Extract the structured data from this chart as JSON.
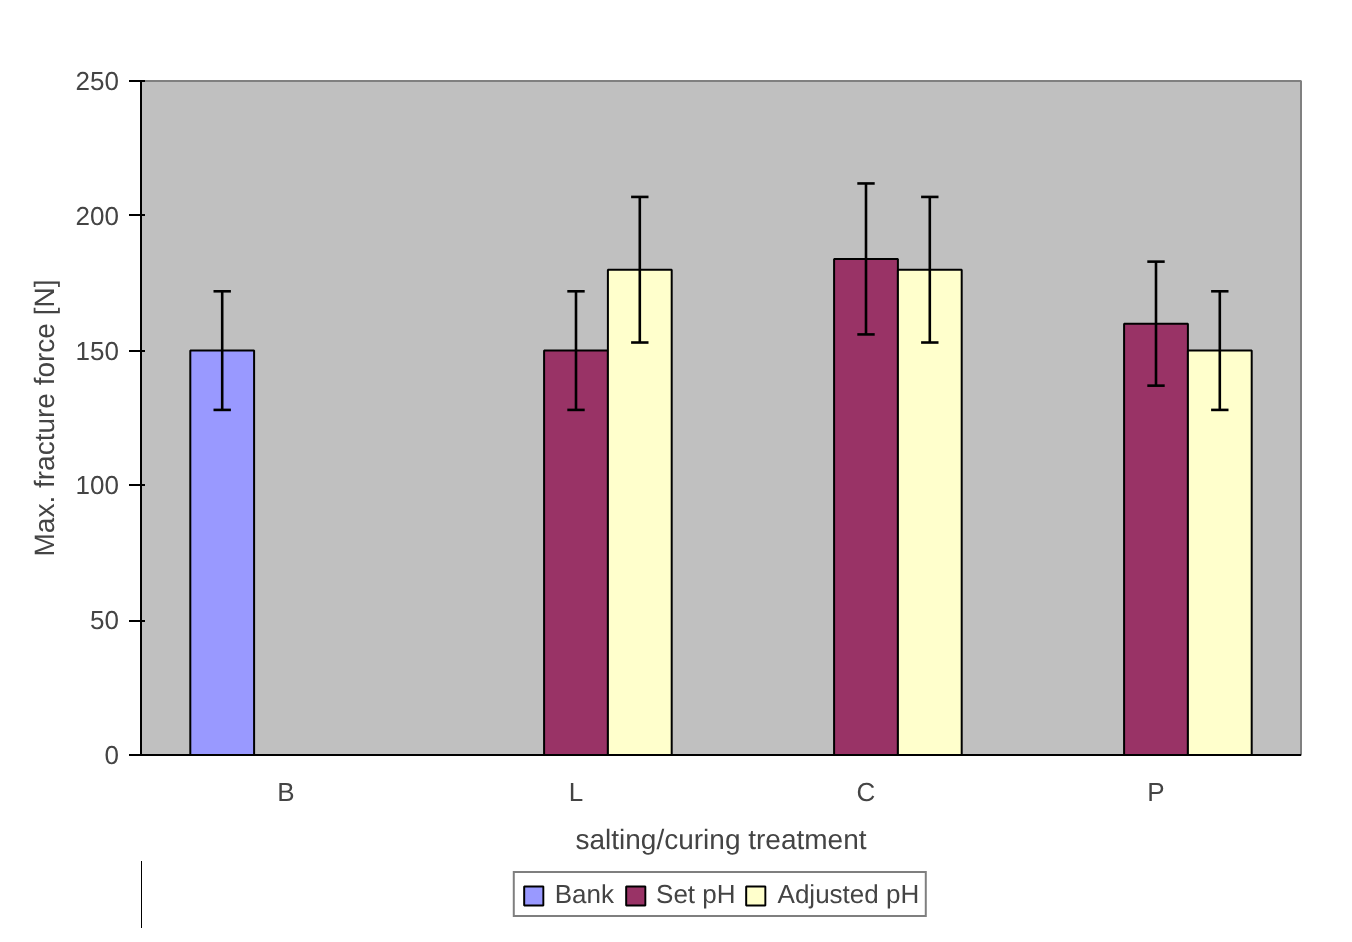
{
  "chart_data": {
    "type": "bar",
    "xlabel": "salting/curing treatment",
    "ylabel": "Max. fracture force [N]",
    "categories": [
      "B",
      "L",
      "C",
      "P"
    ],
    "series": [
      {
        "name": "Bank",
        "color": "#9999ff",
        "values": [
          150,
          null,
          null,
          null
        ],
        "errors": [
          22,
          null,
          null,
          null
        ]
      },
      {
        "name": "Set pH",
        "color": "#993366",
        "values": [
          null,
          150,
          184,
          160
        ],
        "errors": [
          null,
          22,
          28,
          23
        ]
      },
      {
        "name": "Adjusted pH",
        "color": "#ffffcc",
        "values": [
          null,
          180,
          180,
          150
        ],
        "errors": [
          null,
          27,
          27,
          22
        ]
      }
    ],
    "ylim": [
      0,
      250
    ],
    "yticks": [
      0,
      50,
      100,
      150,
      200,
      250
    ],
    "grid": false,
    "legend": "bottom"
  }
}
